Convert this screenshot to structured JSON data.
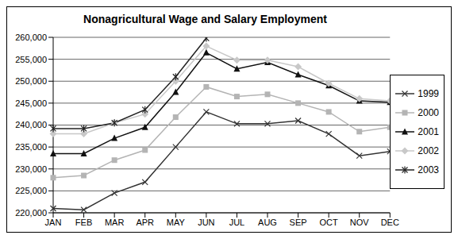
{
  "chart_data": {
    "type": "line",
    "title": "Nonagricultural Wage and Salary Employment",
    "categories": [
      "JAN",
      "FEB",
      "MAR",
      "APR",
      "MAY",
      "JUN",
      "JUL",
      "AUG",
      "SEP",
      "OCT",
      "NOV",
      "DEC"
    ],
    "series": [
      {
        "name": "1999",
        "color": "#333333",
        "marker": "x",
        "values": [
          221000,
          220700,
          224500,
          227000,
          235000,
          243000,
          240300,
          240300,
          241000,
          238000,
          233000,
          234000
        ]
      },
      {
        "name": "2000",
        "color": "#b4b4b4",
        "marker": "square",
        "values": [
          228000,
          228500,
          232000,
          234300,
          241800,
          248700,
          246500,
          247000,
          245000,
          243000,
          238500,
          239500
        ]
      },
      {
        "name": "2001",
        "color": "#111111",
        "marker": "triangle",
        "values": [
          233500,
          233500,
          237000,
          239500,
          247500,
          256500,
          252800,
          254300,
          251500,
          249000,
          245500,
          245200
        ]
      },
      {
        "name": "2002",
        "color": "#c8c8c8",
        "marker": "diamond",
        "values": [
          238000,
          238000,
          240500,
          242500,
          250000,
          258000,
          254800,
          254800,
          253300,
          249500,
          246000,
          245500
        ]
      },
      {
        "name": "2003",
        "color": "#222222",
        "marker": "star",
        "values": [
          239200,
          239200,
          240500,
          243500,
          251000,
          259800,
          null,
          null,
          null,
          null,
          null,
          null
        ]
      }
    ],
    "ylim": [
      220000,
      260000
    ],
    "yticks": [
      {
        "value": 220000,
        "label": "220,000"
      },
      {
        "value": 225000,
        "label": "225,000"
      },
      {
        "value": 230000,
        "label": "230,000"
      },
      {
        "value": 235000,
        "label": "235,000"
      },
      {
        "value": 240000,
        "label": "240,000"
      },
      {
        "value": 245000,
        "label": "245,000"
      },
      {
        "value": 250000,
        "label": "250,000"
      },
      {
        "value": 255000,
        "label": "255,000"
      },
      {
        "value": 260000,
        "label": "260,000"
      }
    ],
    "grid": true,
    "legend": "right"
  }
}
